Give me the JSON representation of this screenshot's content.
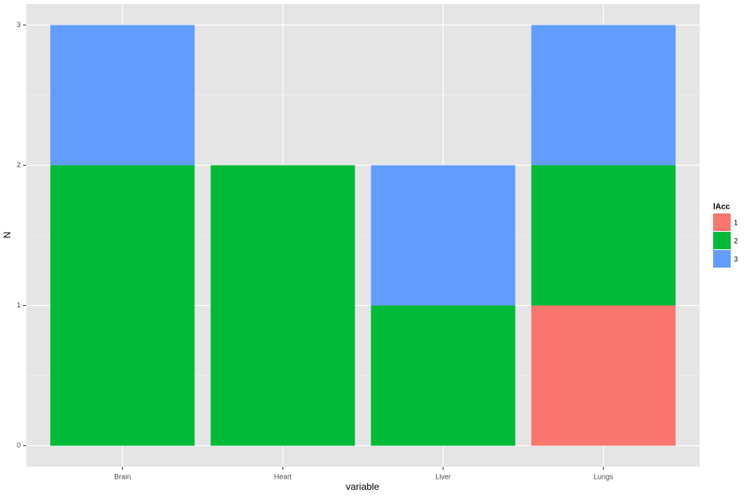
{
  "chart_data": {
    "type": "stacked-bar",
    "x_label": "variable",
    "y_label": "N",
    "categories": [
      "Brain",
      "Heart",
      "Liver",
      "Lungs"
    ],
    "series": [
      {
        "name": "1",
        "color": "#f8766d",
        "values": [
          null,
          null,
          null,
          1
        ]
      },
      {
        "name": "2",
        "color": "#00ba38",
        "values": [
          2,
          2,
          1,
          1
        ]
      },
      {
        "name": "3",
        "color": "#619cff",
        "values": [
          1,
          null,
          1,
          1
        ]
      }
    ],
    "legend_title": "lAcc",
    "legend_position": "right",
    "ylim": [
      -0.15,
      3.15
    ],
    "yticks": [
      0,
      1,
      2,
      3
    ],
    "grid": true
  }
}
